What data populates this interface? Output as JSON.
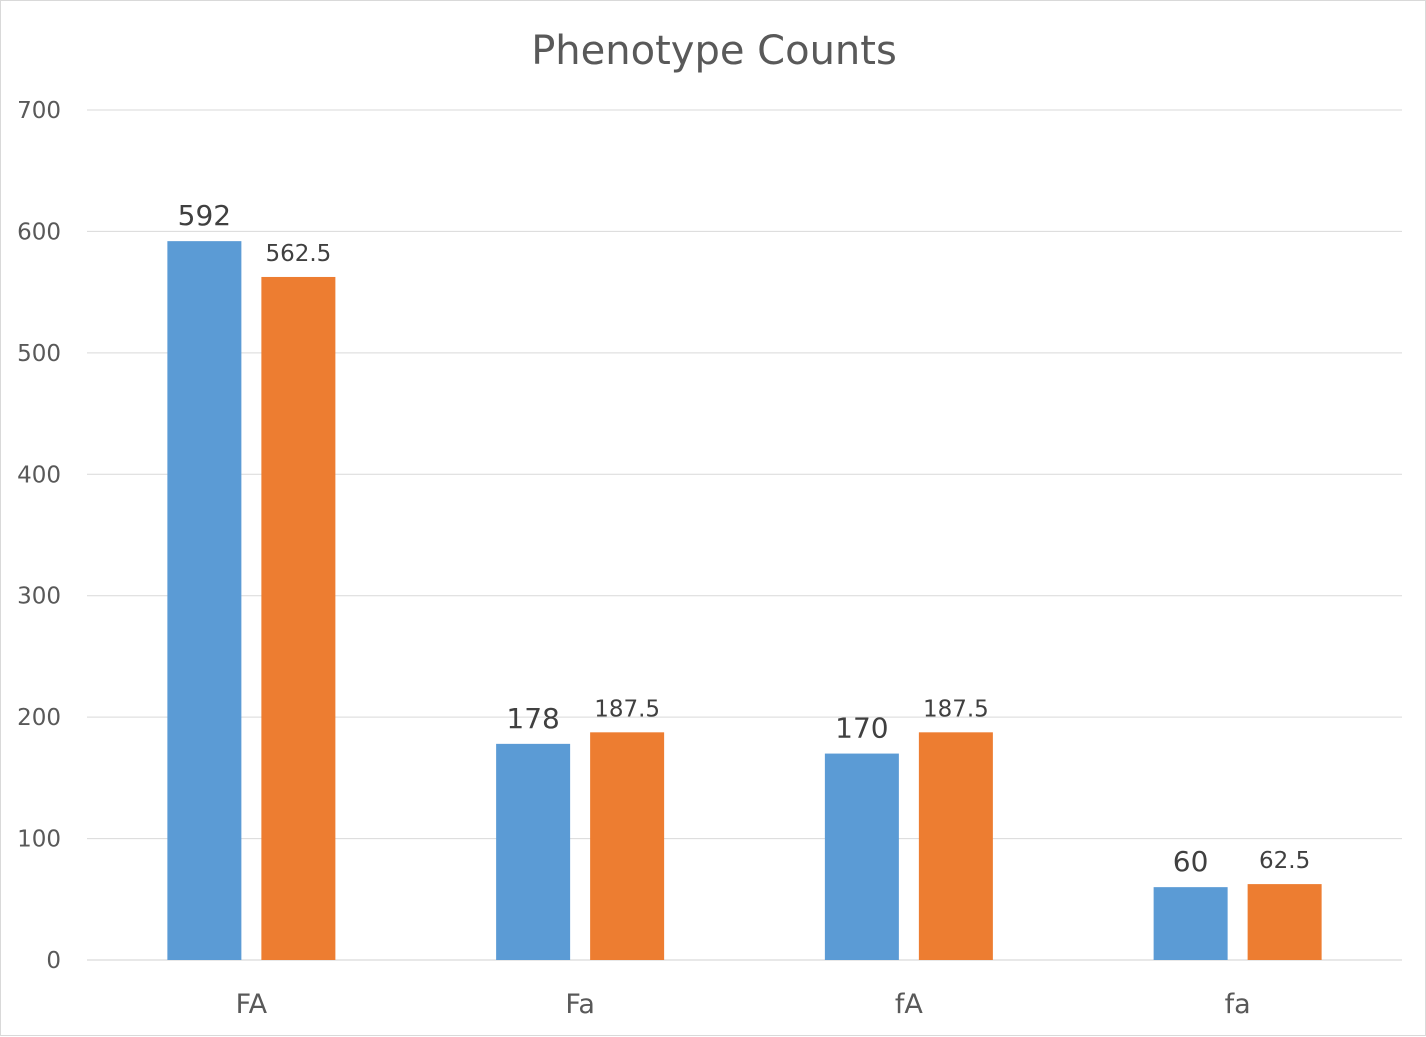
{
  "chart_data": {
    "type": "bar",
    "title": "Phenotype Counts",
    "xlabel": "",
    "ylabel": "",
    "categories": [
      "FA",
      "Fa",
      "fA",
      "fa"
    ],
    "series": [
      {
        "values": [
          592,
          178,
          170,
          60
        ],
        "color": "#5b9bd5",
        "labels": [
          "592",
          "178",
          "170",
          "60"
        ]
      },
      {
        "values": [
          562.5,
          187.5,
          187.5,
          62.5
        ],
        "color": "#ed7d31",
        "labels": [
          "562.5",
          "187.5",
          "187.5",
          "62.5"
        ]
      }
    ],
    "ylim": [
      0,
      700
    ],
    "yticks": [
      0,
      100,
      200,
      300,
      400,
      500,
      600,
      700
    ],
    "ytick_labels": [
      "0",
      "100",
      "200",
      "300",
      "400",
      "500",
      "600",
      "700"
    ],
    "grid": true,
    "legend": "none",
    "data_labels": true
  }
}
